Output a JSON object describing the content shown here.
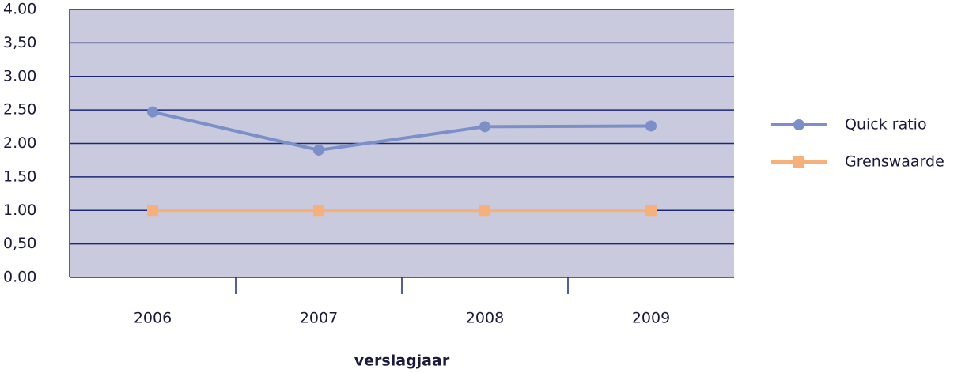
{
  "chart_data": {
    "type": "line",
    "x_label": "verslagjaar",
    "categories": [
      "2006",
      "2007",
      "2008",
      "2009"
    ],
    "series": [
      {
        "name": "Quick ratio",
        "color": "#7b8fc8",
        "marker": "circle",
        "values": [
          2.47,
          1.9,
          2.25,
          2.26
        ]
      },
      {
        "name": "Grenswaarde",
        "color": "#f5b07c",
        "marker": "square",
        "values": [
          1,
          1,
          1,
          1
        ]
      }
    ],
    "ylim": [
      0,
      4
    ],
    "yticks": [
      {
        "value": 0,
        "label": "0.00"
      },
      {
        "value": 0.5,
        "label": "0,50"
      },
      {
        "value": 1,
        "label": "1.00"
      },
      {
        "value": 1.5,
        "label": "1.50"
      },
      {
        "value": 2,
        "label": "2.00"
      },
      {
        "value": 2.5,
        "label": "2.50"
      },
      {
        "value": 3,
        "label": "3.00"
      },
      {
        "value": 3.5,
        "label": "3,50"
      },
      {
        "value": 4,
        "label": "4.00"
      }
    ],
    "grid": true,
    "legend": "right"
  }
}
